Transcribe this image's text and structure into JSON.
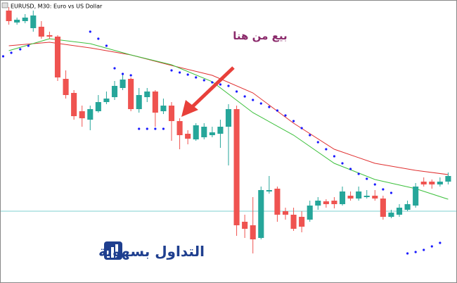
{
  "chart_data": {
    "type": "candlestick",
    "title": "EURUSD, M30: Euro vs US Dollar",
    "annotation": "بيع من هنا",
    "logo_text": "التداول بسهولة",
    "up_color": "#26a69a",
    "down_color": "#ef5350",
    "xlim": [
      -1,
      55
    ],
    "ylim": [
      0,
      392
    ],
    "candles": {
      "open": [
        387,
        370,
        372,
        362,
        364,
        352,
        350,
        290,
        270,
        244,
        232,
        244,
        257,
        264,
        277,
        290,
        247,
        264,
        272,
        244,
        252,
        230,
        212,
        204,
        207,
        210,
        212,
        222,
        247,
        87,
        82,
        64,
        130,
        134,
        102,
        97,
        94,
        90,
        110,
        116,
        117,
        112,
        124,
        120,
        122,
        124,
        120,
        94,
        97,
        104,
        110,
        144,
        144,
        140,
        144
      ],
      "high": [
        392,
        377,
        382,
        387,
        372,
        357,
        352,
        302,
        274,
        252,
        252,
        267,
        272,
        287,
        297,
        292,
        277,
        277,
        274,
        262,
        257,
        234,
        217,
        227,
        227,
        222,
        232,
        254,
        252,
        97,
        122,
        137,
        152,
        137,
        107,
        107,
        102,
        117,
        122,
        119,
        122,
        137,
        130,
        137,
        132,
        132,
        124,
        104,
        112,
        117,
        142,
        150,
        147,
        150,
        157
      ],
      "low": [
        367,
        367,
        369,
        357,
        347,
        347,
        287,
        262,
        232,
        222,
        217,
        242,
        254,
        260,
        274,
        244,
        242,
        257,
        222,
        240,
        202,
        190,
        197,
        202,
        204,
        207,
        192,
        167,
        67,
        64,
        42,
        62,
        127,
        87,
        90,
        74,
        72,
        87,
        104,
        107,
        106,
        110,
        117,
        117,
        120,
        117,
        90,
        92,
        94,
        102,
        107,
        137,
        134,
        137,
        140
      ],
      "close": [
        372,
        374,
        377,
        380,
        350,
        350,
        292,
        267,
        237,
        234,
        247,
        257,
        262,
        280,
        289,
        247,
        267,
        272,
        242,
        252,
        230,
        210,
        205,
        224,
        222,
        214,
        222,
        247,
        82,
        77,
        62,
        132,
        132,
        97,
        97,
        77,
        80,
        110,
        117,
        112,
        112,
        130,
        120,
        130,
        124,
        120,
        94,
        100,
        107,
        112,
        137,
        140,
        140,
        144,
        152
      ]
    },
    "lines": [
      {
        "color": "#e03030",
        "x": [
          0,
          5,
          10,
          15,
          20,
          25,
          30,
          35,
          40,
          45,
          50,
          54
        ],
        "values": [
          337,
          342,
          334,
          324,
          309,
          295,
          270,
          227,
          190,
          170,
          160,
          154
        ]
      },
      {
        "color": "#3cc03c",
        "x": [
          0,
          5,
          10,
          15,
          20,
          25,
          30,
          35,
          40,
          45,
          50,
          54
        ],
        "values": [
          330,
          347,
          340,
          324,
          310,
          286,
          242,
          210,
          170,
          147,
          134,
          119
        ]
      }
    ],
    "dots": {
      "color": "#1a1aff",
      "x": [
        -0.7,
        0.3,
        1.4,
        2.4,
        10,
        11,
        12,
        13,
        14,
        15,
        16,
        17,
        18,
        19,
        20,
        21,
        22,
        23,
        24,
        25,
        26,
        27,
        28,
        29,
        30,
        31,
        32,
        33,
        34,
        35,
        36,
        37,
        38,
        39,
        40,
        41,
        42,
        43,
        44,
        45,
        46,
        47,
        49,
        50,
        51,
        52,
        53
      ],
      "values": [
        322,
        327,
        332,
        337,
        357,
        347,
        337,
        305,
        297,
        295,
        219,
        219,
        219,
        219,
        302,
        299,
        296,
        292,
        288,
        285,
        282,
        280,
        272,
        265,
        260,
        255,
        250,
        245,
        238,
        230,
        220,
        210,
        200,
        190,
        180,
        170,
        162,
        155,
        148,
        140,
        133,
        128,
        42,
        44,
        47,
        52,
        57
      ]
    },
    "hline": {
      "value": 102,
      "color": "#7fd0d0"
    }
  }
}
